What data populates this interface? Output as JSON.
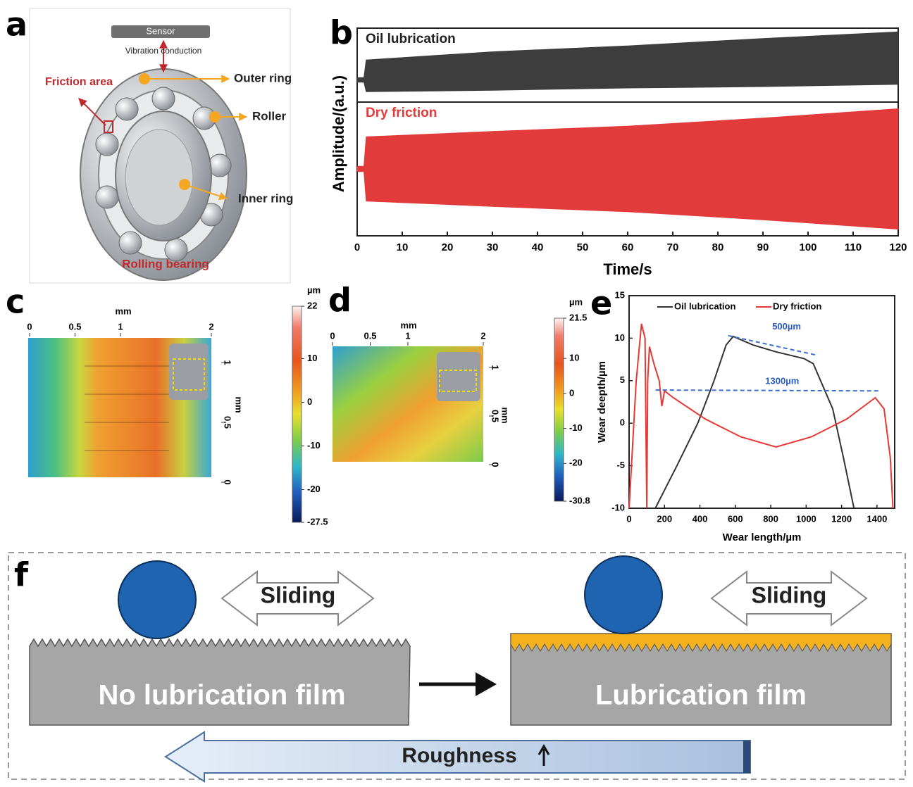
{
  "panel_labels": [
    "a",
    "b",
    "c",
    "d",
    "e",
    "f"
  ],
  "bearing": {
    "sensor": "Sensor",
    "vibration": "Vibration conduction",
    "friction_area": "Friction area",
    "outer_ring": "Outer ring",
    "roller": "Roller",
    "inner_ring": "Inner ring",
    "caption": "Rolling bearing"
  },
  "surfaces": [
    {
      "x_label": "mm",
      "xlim": [
        0,
        2
      ],
      "xticks": [
        0,
        0.5,
        1,
        2
      ],
      "y_label": "mm",
      "ylim": [
        0,
        1
      ],
      "yticks": [
        0,
        0.5,
        1
      ],
      "colorbar": {
        "unit": "µm",
        "range": [
          -27.5,
          22
        ],
        "ticks": [
          -27.5,
          -20,
          -10,
          0,
          10,
          22
        ]
      }
    },
    {
      "x_label": "mm",
      "xlim": [
        0,
        2
      ],
      "xticks": [
        0,
        0.5,
        1,
        2
      ],
      "y_label": "mm",
      "ylim": [
        0,
        1
      ],
      "yticks": [
        0,
        0.5,
        1
      ],
      "colorbar": {
        "unit": "µm",
        "range": [
          -30.8,
          21.5
        ],
        "ticks": [
          -30.8,
          -20,
          -10,
          0,
          10,
          21.5
        ]
      }
    }
  ],
  "chart_data": [
    {
      "type": "band",
      "label": "Oil lubrication",
      "color": "#3d3d3d",
      "y_label": "Amplitude/(a.u.)",
      "x": [
        0,
        1.5,
        2,
        30,
        60,
        90,
        120
      ],
      "upper": [
        0.33,
        0.33,
        0.57,
        0.68,
        0.76,
        0.86,
        0.95
      ],
      "lower": [
        0.27,
        0.27,
        0.14,
        0.16,
        0.19,
        0.21,
        0.24
      ],
      "xlim": [
        0,
        120
      ],
      "ylim": [
        0,
        1
      ]
    },
    {
      "type": "band",
      "label": "Dry friction",
      "color": "#e23b3b",
      "x_label": "Time/s",
      "x": [
        0,
        1.5,
        2,
        30,
        60,
        90,
        120
      ],
      "upper": [
        0.52,
        0.52,
        0.74,
        0.78,
        0.82,
        0.88,
        0.95
      ],
      "lower": [
        0.48,
        0.48,
        0.26,
        0.22,
        0.18,
        0.12,
        0.05
      ],
      "xlim": [
        0,
        120
      ],
      "ylim": [
        0,
        1
      ],
      "xticks": [
        0,
        10,
        20,
        30,
        40,
        50,
        60,
        70,
        80,
        90,
        100,
        110,
        120
      ]
    },
    {
      "type": "line",
      "x_label": "Wear length/µm",
      "y_label": "Wear deepth/µm",
      "xlim": [
        0,
        1500
      ],
      "ylim": [
        -10,
        15
      ],
      "xticks": [
        0,
        200,
        400,
        600,
        800,
        1000,
        1200,
        1400
      ],
      "yticks": [
        -10,
        -5,
        0,
        5,
        10,
        15
      ],
      "series": [
        {
          "name": "Oil lubrication",
          "color": "#333333",
          "x": [
            148,
            270,
            388,
            480,
            548,
            588,
            700,
            828,
            988,
            1040,
            1150,
            1210,
            1270
          ],
          "values": [
            -10,
            -5,
            0,
            5,
            9.2,
            10.2,
            9.2,
            8.4,
            7.6,
            7,
            1.7,
            -4,
            -10
          ]
        },
        {
          "name": "Dry friction",
          "color": "#e53935",
          "x": [
            0,
            40,
            70,
            90,
            100,
            105,
            115,
            140,
            170,
            185,
            200,
            250,
            430,
            630,
            830,
            1030,
            1230,
            1390,
            1440,
            1475,
            1490
          ],
          "values": [
            -10,
            5,
            11.7,
            10,
            -10,
            5,
            9,
            7,
            5,
            2,
            3.8,
            3,
            0.5,
            -1.6,
            -2.8,
            -1.6,
            0.5,
            3,
            1.7,
            -4,
            -10
          ]
        }
      ],
      "annotations": [
        {
          "text": "500µm",
          "x": [
            560,
            1060
          ],
          "y": [
            10.3,
            8
          ]
        },
        {
          "text": "1300µm",
          "x": [
            150,
            1420
          ],
          "y": [
            3.9,
            3.8
          ]
        }
      ]
    }
  ],
  "diagram": {
    "sliding_left": "Sliding",
    "sliding_right": "Sliding",
    "no_film": "No lubrication film",
    "film": "Lubrication film",
    "roughness": "Roughness"
  }
}
